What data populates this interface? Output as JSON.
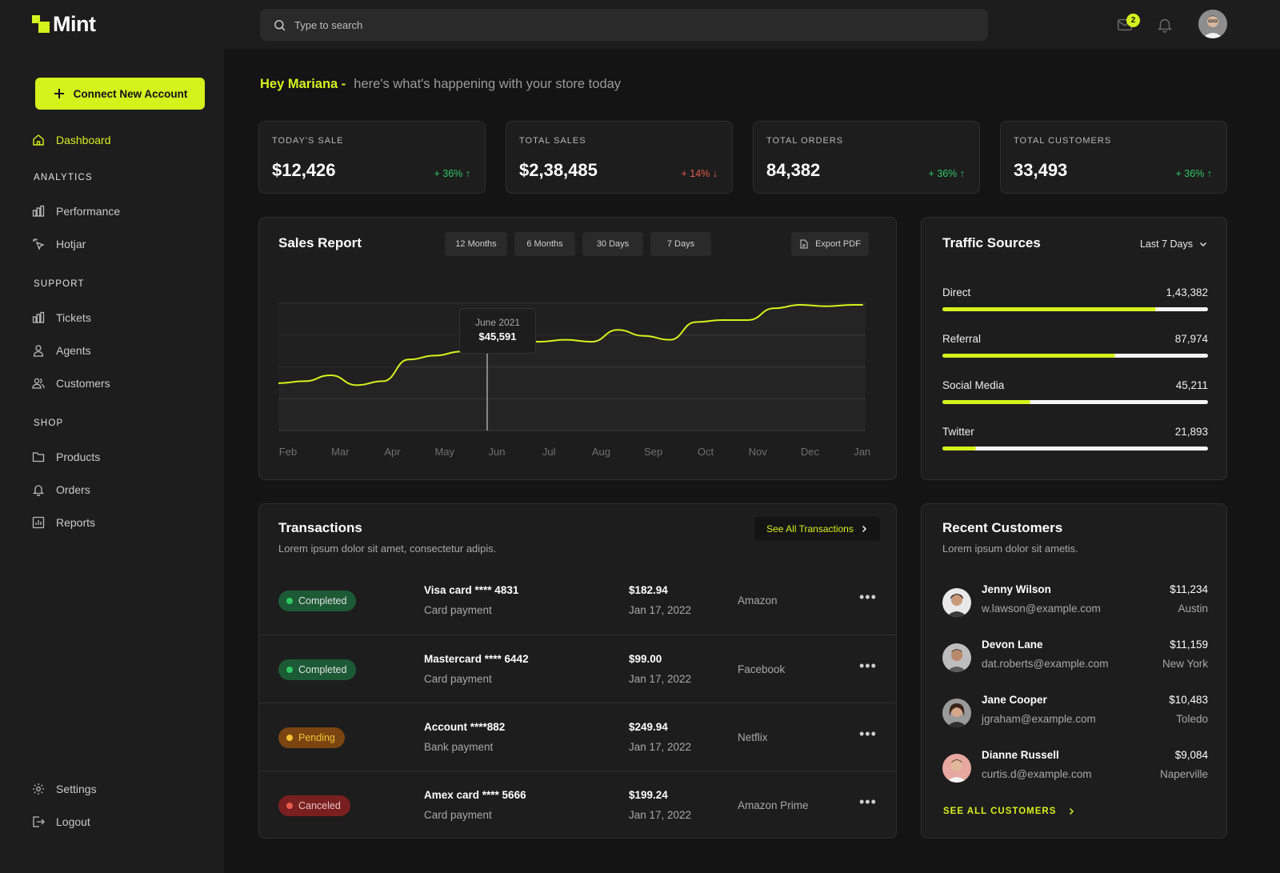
{
  "app": {
    "name": "Mint"
  },
  "search": {
    "placeholder": "Type to search"
  },
  "header": {
    "mail_badge": "2"
  },
  "sidebar": {
    "connect_label": "Connect New Account",
    "dashboard": "Dashboard",
    "analytics_label": "ANALYTICS",
    "performance": "Performance",
    "hotjar": "Hotjar",
    "support_label": "SUPPORT",
    "tickets": "Tickets",
    "agents": "Agents",
    "customers": "Customers",
    "shop_label": "SHOP",
    "products": "Products",
    "orders": "Orders",
    "reports": "Reports",
    "settings": "Settings",
    "logout": "Logout"
  },
  "greeting": {
    "name": "Hey Mariana -",
    "text": "here's what's happening with your store today"
  },
  "stats": [
    {
      "label": "TODAY'S SALE",
      "value": "$12,426",
      "change": "+ 36% ↑"
    },
    {
      "label": "TOTAL SALES",
      "value": "$2,38,485",
      "change": "+ 14% ↓"
    },
    {
      "label": "TOTAL ORDERS",
      "value": "84,382",
      "change": "+ 36% ↑"
    },
    {
      "label": "TOTAL CUSTOMERS",
      "value": "33,493",
      "change": "+ 36% ↑"
    }
  ],
  "sales_report": {
    "title": "Sales Report",
    "ranges": [
      "12 Months",
      "6 Months",
      "30 Days",
      "7 Days"
    ],
    "export_label": "Export PDF",
    "tooltip": {
      "date": "June 2021",
      "value": "$45,591"
    }
  },
  "chart_data": {
    "type": "line",
    "title": "Sales Report",
    "categories": [
      "Feb",
      "Mar",
      "Apr",
      "May",
      "Jun",
      "Jul",
      "Aug",
      "Sep",
      "Oct",
      "Nov",
      "Dec",
      "Jan"
    ],
    "x": [
      0,
      0.5,
      1,
      1.5,
      2,
      2.5,
      3,
      3.5,
      4,
      4.5,
      5,
      5.5,
      6,
      6.5,
      7,
      7.5,
      8,
      8.5,
      9,
      9.5,
      10,
      10.5,
      11,
      11.2
    ],
    "values": [
      24,
      25,
      28,
      23,
      25,
      36,
      38,
      40,
      46,
      47,
      45,
      46,
      45,
      51,
      48,
      46,
      55,
      56,
      56,
      62,
      66,
      63,
      68,
      74
    ],
    "highlight": {
      "category": "Jun",
      "value": 45591,
      "label": "June 2021"
    },
    "ylim": [
      0,
      100
    ],
    "grid": true,
    "xlabel": "",
    "ylabel": ""
  },
  "traffic": {
    "title": "Traffic Sources",
    "range_label": "Last 7 Days",
    "sources": [
      {
        "label": "Direct",
        "value": "1,43,382",
        "share": 0.805
      },
      {
        "label": "Referral",
        "value": "87,974",
        "share": 0.65
      },
      {
        "label": "Social Media",
        "value": "45,211",
        "share": 0.33
      },
      {
        "label": "Twitter",
        "value": "21,893",
        "share": 0.125
      }
    ]
  },
  "transactions": {
    "title": "Transactions",
    "subtitle": "Lorem ipsum dolor sit amet, consectetur adipis.",
    "see_all": "See All Transactions",
    "rows": [
      {
        "status": "Completed",
        "method": "Visa card  **** 4831",
        "type": "Card payment",
        "amount": "$182.94",
        "date": "Jan 17, 2022",
        "merchant": "Amazon"
      },
      {
        "status": "Completed",
        "method": "Mastercard  **** 6442",
        "type": "Card payment",
        "amount": "$99.00",
        "date": "Jan 17, 2022",
        "merchant": "Facebook"
      },
      {
        "status": "Pending",
        "method": "Account  ****882",
        "type": "Bank payment",
        "amount": "$249.94",
        "date": "Jan 17, 2022",
        "merchant": "Netflix"
      },
      {
        "status": "Canceled",
        "method": "Amex card  **** 5666",
        "type": "Card payment",
        "amount": "$199.24",
        "date": "Jan 17, 2022",
        "merchant": "Amazon Prime"
      }
    ]
  },
  "recent_customers": {
    "title": "Recent Customers",
    "subtitle": "Lorem ipsum dolor sit ametis.",
    "see_all": "SEE ALL CUSTOMERS",
    "rows": [
      {
        "name": "Jenny Wilson",
        "email": "w.lawson@example.com",
        "amount": "$11,234",
        "city": "Austin"
      },
      {
        "name": "Devon Lane",
        "email": "dat.roberts@example.com",
        "amount": "$11,159",
        "city": "New York"
      },
      {
        "name": "Jane Cooper",
        "email": "jgraham@example.com",
        "amount": "$10,483",
        "city": "Toledo"
      },
      {
        "name": "Dianne Russell",
        "email": "curtis.d@example.com",
        "amount": "$9,084",
        "city": "Naperville"
      }
    ]
  },
  "colors": {
    "accent": "#d4f21c",
    "background": "#141414",
    "panel": "#1d1d1d",
    "up": "#2ec862",
    "down": "#e85b4b"
  }
}
